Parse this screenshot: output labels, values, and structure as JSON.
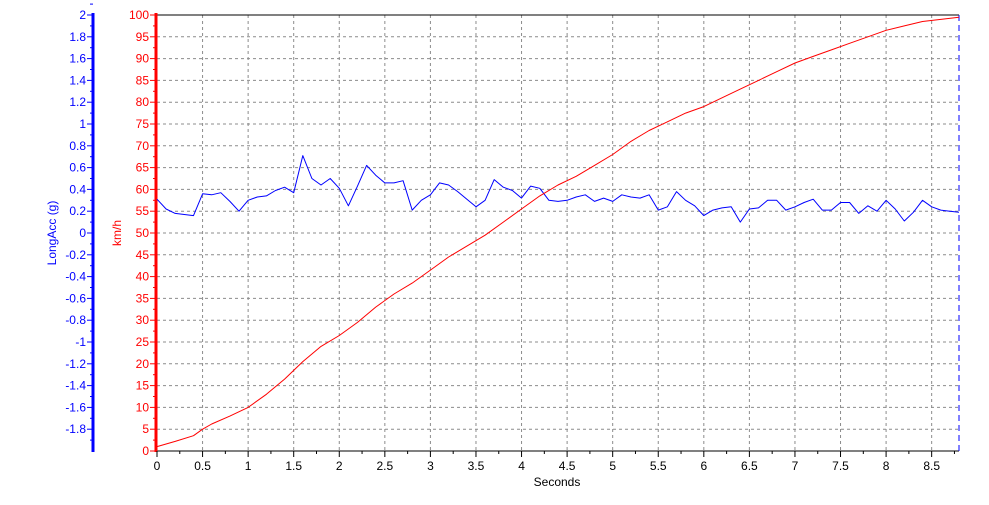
{
  "chart_data": {
    "type": "line",
    "xlabel": "Seconds",
    "x_ticks": [
      "0",
      "0.5",
      "1",
      "1.5",
      "2",
      "2.5",
      "3",
      "3.5",
      "4",
      "4.5",
      "5",
      "5.5",
      "6",
      "6.5",
      "7",
      "7.5",
      "8",
      "8.5"
    ],
    "xlim": [
      0,
      8.8
    ],
    "grid": true,
    "y_axes": {
      "left": {
        "label": "LongAcc (g)",
        "color": "#0000ff",
        "ylim": [
          -2,
          2
        ],
        "ticks": [
          "2",
          "1.8",
          "1.6",
          "1.4",
          "1.2",
          "1",
          "0.8",
          "0.6",
          "0.4",
          "0.2",
          "0",
          "-0.2",
          "-0.4",
          "-0.6",
          "-0.8",
          "-1",
          "-1.2",
          "-1.4",
          "-1.6",
          "-1.8"
        ]
      },
      "right": {
        "label": "km/h",
        "color": "#ff0000",
        "ylim": [
          0,
          100
        ],
        "ticks": [
          "100",
          "95",
          "90",
          "85",
          "80",
          "75",
          "70",
          "65",
          "60",
          "55",
          "50",
          "45",
          "40",
          "35",
          "30",
          "25",
          "20",
          "15",
          "10",
          "5",
          "0"
        ]
      }
    },
    "series": [
      {
        "axis": "left",
        "color": "#0000ff",
        "x": [
          0,
          0.1,
          0.2,
          0.3,
          0.4,
          0.5,
          0.6,
          0.7,
          0.8,
          0.9,
          1.0,
          1.1,
          1.2,
          1.3,
          1.4,
          1.5,
          1.6,
          1.7,
          1.8,
          1.9,
          2.0,
          2.1,
          2.2,
          2.3,
          2.4,
          2.5,
          2.6,
          2.7,
          2.8,
          2.9,
          3.0,
          3.1,
          3.2,
          3.3,
          3.4,
          3.5,
          3.6,
          3.7,
          3.8,
          3.9,
          4.0,
          4.1,
          4.2,
          4.3,
          4.4,
          4.5,
          4.6,
          4.7,
          4.8,
          4.9,
          5.0,
          5.1,
          5.2,
          5.3,
          5.4,
          5.5,
          5.6,
          5.7,
          5.8,
          5.9,
          6.0,
          6.1,
          6.2,
          6.3,
          6.4,
          6.5,
          6.6,
          6.7,
          6.8,
          6.9,
          7.0,
          7.1,
          7.2,
          7.3,
          7.4,
          7.5,
          7.6,
          7.7,
          7.8,
          7.9,
          8.0,
          8.1,
          8.2,
          8.3,
          8.4,
          8.5,
          8.6,
          8.7,
          8.8
        ],
        "y": [
          0.31,
          0.22,
          0.18,
          0.17,
          0.16,
          0.36,
          0.35,
          0.37,
          0.29,
          0.2,
          0.3,
          0.33,
          0.34,
          0.39,
          0.42,
          0.37,
          0.71,
          0.5,
          0.44,
          0.5,
          0.41,
          0.25,
          0.43,
          0.62,
          0.53,
          0.46,
          0.46,
          0.48,
          0.21,
          0.3,
          0.35,
          0.46,
          0.44,
          0.38,
          0.31,
          0.24,
          0.3,
          0.49,
          0.42,
          0.39,
          0.32,
          0.43,
          0.41,
          0.3,
          0.29,
          0.3,
          0.33,
          0.35,
          0.29,
          0.32,
          0.29,
          0.35,
          0.33,
          0.32,
          0.35,
          0.21,
          0.24,
          0.38,
          0.3,
          0.25,
          0.16,
          0.21,
          0.23,
          0.24,
          0.1,
          0.22,
          0.23,
          0.3,
          0.3,
          0.21,
          0.24,
          0.28,
          0.31,
          0.21,
          0.21,
          0.28,
          0.28,
          0.18,
          0.25,
          0.2,
          0.3,
          0.22,
          0.11,
          0.19,
          0.3,
          0.24,
          0.21,
          0.2,
          0.19
        ]
      },
      {
        "axis": "right",
        "color": "#ff0000",
        "x": [
          0,
          0.2,
          0.4,
          0.5,
          0.6,
          0.8,
          1.0,
          1.2,
          1.4,
          1.6,
          1.8,
          2.0,
          2.2,
          2.4,
          2.6,
          2.8,
          3.0,
          3.2,
          3.4,
          3.6,
          3.8,
          4.0,
          4.2,
          4.4,
          4.6,
          4.8,
          5.0,
          5.2,
          5.4,
          5.6,
          5.8,
          6.0,
          6.2,
          6.4,
          6.6,
          6.8,
          7.0,
          7.2,
          7.4,
          7.6,
          7.8,
          8.0,
          8.2,
          8.4,
          8.6,
          8.8
        ],
        "y": [
          1.0,
          2.2,
          3.5,
          5.0,
          6.2,
          8.0,
          10.0,
          13.0,
          16.5,
          20.5,
          24.0,
          26.5,
          29.5,
          33.0,
          36.0,
          38.5,
          41.5,
          44.5,
          47.0,
          49.5,
          52.5,
          55.5,
          58.5,
          61.0,
          63.0,
          65.5,
          68.0,
          71.0,
          73.5,
          75.5,
          77.5,
          79.0,
          81.0,
          83.0,
          85.0,
          87.0,
          89.0,
          90.5,
          92.0,
          93.5,
          95.0,
          96.5,
          97.5,
          98.5,
          99.0,
          99.5
        ]
      }
    ]
  }
}
